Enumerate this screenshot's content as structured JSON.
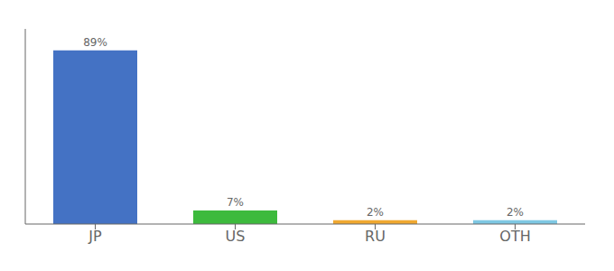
{
  "chart_data": {
    "type": "bar",
    "categories": [
      "JP",
      "US",
      "RU",
      "OTH"
    ],
    "values": [
      89,
      7,
      2,
      2
    ],
    "value_labels": [
      "89%",
      "7%",
      "2%",
      "2%"
    ],
    "data_labels": true,
    "colors": [
      "#4472c4",
      "#3dba3d",
      "#f0a830",
      "#7ec8e3"
    ],
    "ylim": [
      0,
      100
    ],
    "grid": false,
    "tick_labels": "x"
  }
}
